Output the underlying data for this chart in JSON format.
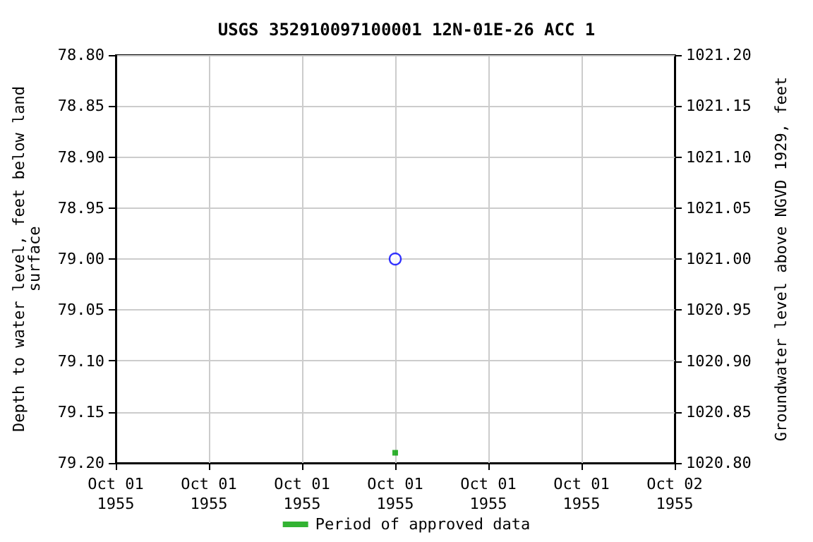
{
  "chart_data": {
    "type": "scatter",
    "title": "USGS 352910097100001 12N-01E-26 ACC 1",
    "ylabel": "Depth to water level, feet below land surface",
    "y2label": "Groundwater level above NGVD 1929, feet",
    "series": [
      {
        "color": "#0000ff",
        "marker": "circle",
        "x": [
          "1955-10-01T12:00"
        ],
        "values": [
          79.0
        ]
      },
      {
        "name": "Period of approved data",
        "color": "#00a000",
        "marker": "square",
        "x": [
          "1955-10-01T12:00"
        ],
        "values": [
          79.19
        ]
      }
    ],
    "xlim": [
      "1955-10-01T00:00",
      "1955-10-02T00:00"
    ],
    "xticks": [
      {
        "value": "1955-10-01T00:00",
        "label": "Oct 01\n1955"
      },
      {
        "value": "1955-10-01T04:00",
        "label": "Oct 01\n1955"
      },
      {
        "value": "1955-10-01T08:00",
        "label": "Oct 01\n1955"
      },
      {
        "value": "1955-10-01T12:00",
        "label": "Oct 01\n1955"
      },
      {
        "value": "1955-10-01T16:00",
        "label": "Oct 01\n1955"
      },
      {
        "value": "1955-10-01T20:00",
        "label": "Oct 01\n1955"
      },
      {
        "value": "1955-10-02T00:00",
        "label": "Oct 02\n1955"
      }
    ],
    "ylim": [
      79.2,
      78.8
    ],
    "yticks": [
      {
        "value": 78.8,
        "label": "78.80"
      },
      {
        "value": 78.85,
        "label": "78.85"
      },
      {
        "value": 78.9,
        "label": "78.90"
      },
      {
        "value": 78.95,
        "label": "78.95"
      },
      {
        "value": 79.0,
        "label": "79.00"
      },
      {
        "value": 79.05,
        "label": "79.05"
      },
      {
        "value": 79.1,
        "label": "79.10"
      },
      {
        "value": 79.15,
        "label": "79.15"
      },
      {
        "value": 79.2,
        "label": "79.20"
      }
    ],
    "y2lim": [
      1020.8,
      1021.2
    ],
    "y2ticks": [
      {
        "value": 1021.2,
        "label": "1021.20"
      },
      {
        "value": 1021.15,
        "label": "1021.15"
      },
      {
        "value": 1021.1,
        "label": "1021.10"
      },
      {
        "value": 1021.05,
        "label": "1021.05"
      },
      {
        "value": 1021.0,
        "label": "1021.00"
      },
      {
        "value": 1020.95,
        "label": "1020.95"
      },
      {
        "value": 1020.9,
        "label": "1020.90"
      },
      {
        "value": 1020.85,
        "label": "1020.85"
      },
      {
        "value": 1020.8,
        "label": "1020.80"
      }
    ],
    "grid": true,
    "legend": "bottom"
  }
}
